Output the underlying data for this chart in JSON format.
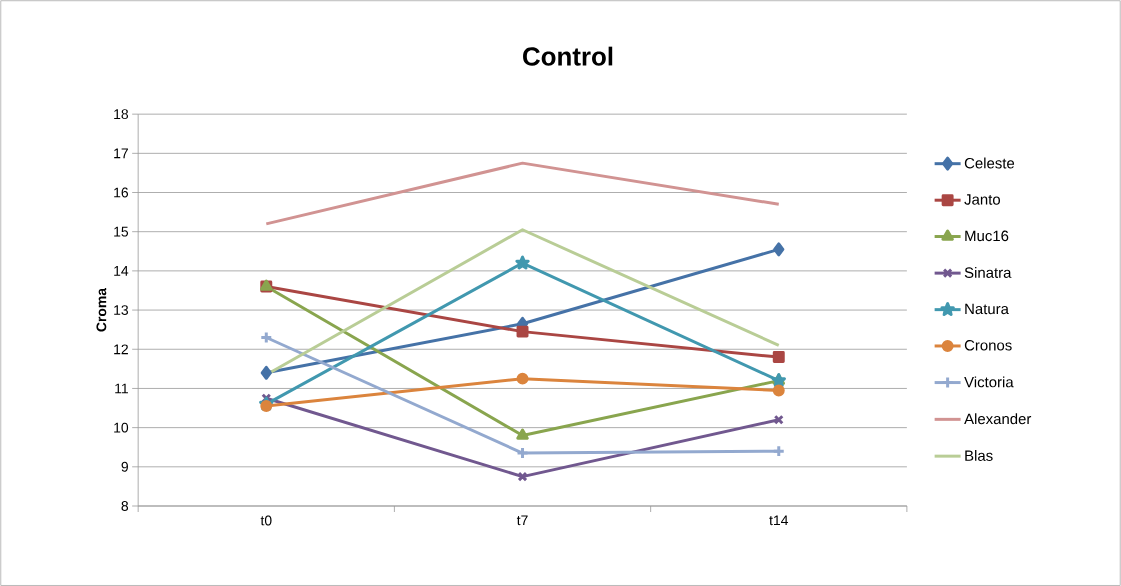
{
  "chart_data": {
    "type": "line",
    "title": "Control",
    "ylabel": "Croma",
    "categories": [
      "t0",
      "t7",
      "t14"
    ],
    "ylim": [
      8,
      18
    ],
    "yticks": [
      8,
      9,
      10,
      11,
      12,
      13,
      14,
      15,
      16,
      17,
      18
    ],
    "grid": "y",
    "legend": "right",
    "series": [
      {
        "name": "Celeste",
        "color": "#4572a7",
        "marker": "diamond",
        "values": [
          11.4,
          12.65,
          14.55
        ]
      },
      {
        "name": "Janto",
        "color": "#aa4643",
        "marker": "square",
        "values": [
          13.6,
          12.45,
          11.8
        ]
      },
      {
        "name": "Muc16",
        "color": "#89a54e",
        "marker": "triangle",
        "values": [
          13.6,
          9.8,
          11.2
        ]
      },
      {
        "name": "Sinatra",
        "color": "#71588f",
        "marker": "cross",
        "values": [
          10.75,
          8.75,
          10.2
        ]
      },
      {
        "name": "Natura",
        "color": "#4198af",
        "marker": "star",
        "values": [
          10.6,
          14.2,
          11.2
        ]
      },
      {
        "name": "Cronos",
        "color": "#db843d",
        "marker": "circle",
        "values": [
          10.55,
          11.25,
          10.95
        ]
      },
      {
        "name": "Victoria",
        "color": "#93a9cf",
        "marker": "plus",
        "values": [
          12.3,
          9.35,
          9.4
        ]
      },
      {
        "name": "Alexander",
        "color": "#d19392",
        "marker": "none",
        "values": [
          15.2,
          16.75,
          15.7
        ]
      },
      {
        "name": "Blas",
        "color": "#b9cd96",
        "marker": "none",
        "values": [
          11.35,
          15.05,
          12.1
        ]
      }
    ]
  }
}
